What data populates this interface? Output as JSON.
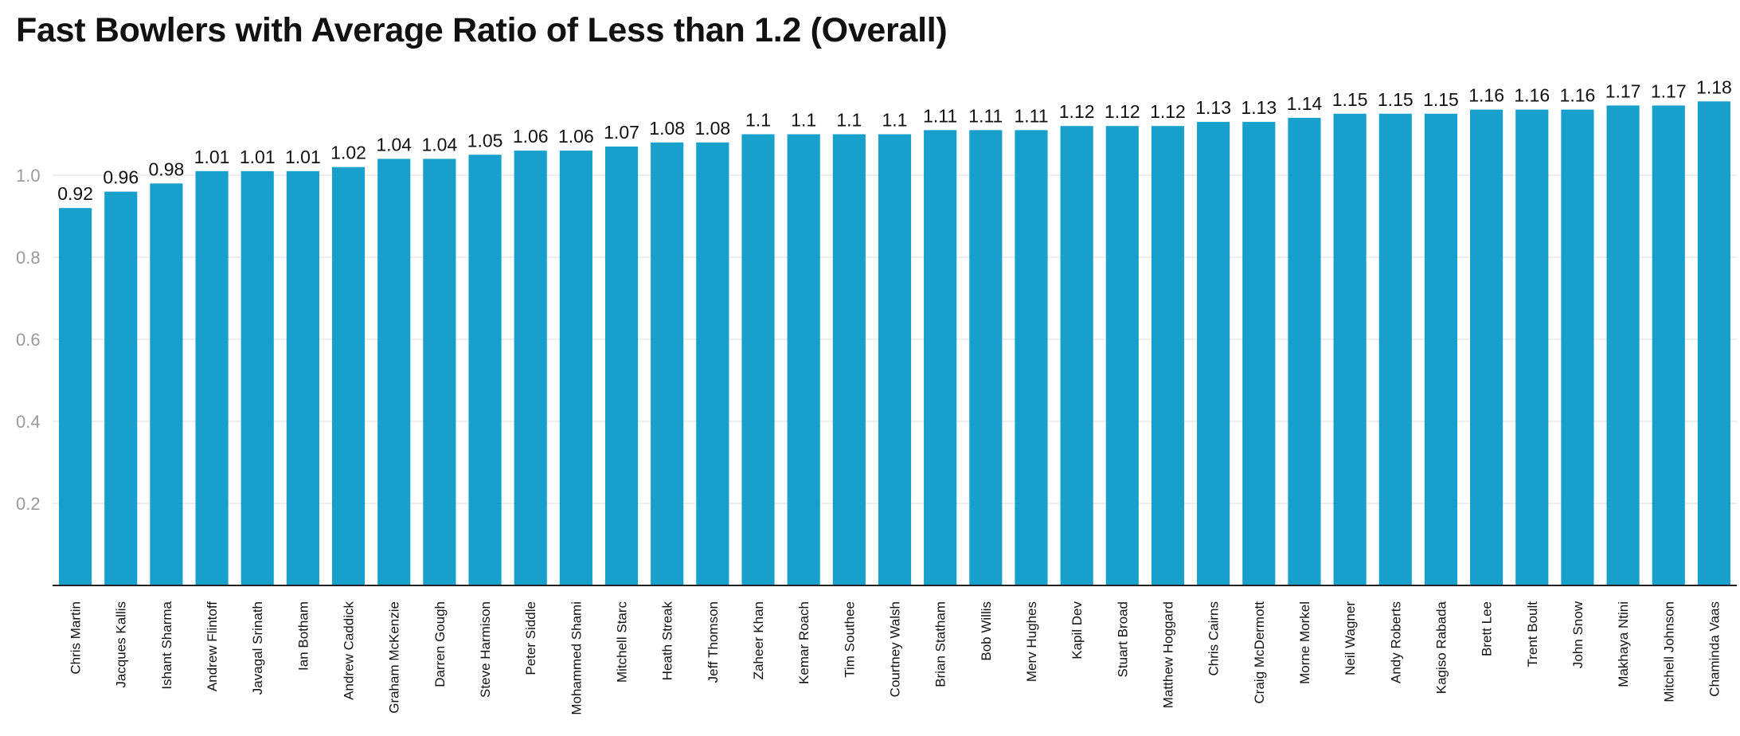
{
  "chart_data": {
    "type": "bar",
    "title": "Fast Bowlers with Average Ratio of Less than 1.2 (Overall)",
    "xlabel": "",
    "ylabel": "",
    "ylim": [
      0,
      1.2
    ],
    "yticks": [
      0.2,
      0.4,
      0.6,
      0.8,
      1.0
    ],
    "ytick_labels": [
      "0.2",
      "0.4",
      "0.6",
      "0.8",
      "1.0"
    ],
    "grid": true,
    "bar_color": "#18a0cc",
    "categories": [
      "Chris Martin",
      "Jacques Kallis",
      "Ishant Sharma",
      "Andrew Flintoff",
      "Javagal Srinath",
      "Ian Botham",
      "Andrew Caddick",
      "Graham McKenzie",
      "Darren Gough",
      "Steve Harmison",
      "Peter Siddle",
      "Mohammed Shami",
      "Mitchell Starc",
      "Heath Streak",
      "Jeff Thomson",
      "Zaheer Khan",
      "Kemar Roach",
      "Tim Southee",
      "Courtney Walsh",
      "Brian Statham",
      "Bob Willis",
      "Merv Hughes",
      "Kapil Dev",
      "Stuart Broad",
      "Matthew Hoggard",
      "Chris Cairns",
      "Craig McDermott",
      "Morne Morkel",
      "Neil Wagner",
      "Andy Roberts",
      "Kagiso Rabada",
      "Brett Lee",
      "Trent Boult",
      "John Snow",
      "Makhaya Ntini",
      "Mitchell Johnson",
      "Chaminda Vaas"
    ],
    "values": [
      0.92,
      0.96,
      0.98,
      1.01,
      1.01,
      1.01,
      1.02,
      1.04,
      1.04,
      1.05,
      1.06,
      1.06,
      1.07,
      1.08,
      1.08,
      1.1,
      1.1,
      1.1,
      1.1,
      1.11,
      1.11,
      1.11,
      1.12,
      1.12,
      1.12,
      1.13,
      1.13,
      1.14,
      1.15,
      1.15,
      1.15,
      1.16,
      1.16,
      1.16,
      1.17,
      1.17,
      1.18
    ],
    "value_labels": [
      "0.92",
      "0.96",
      "0.98",
      "1.01",
      "1.01",
      "1.01",
      "1.02",
      "1.04",
      "1.04",
      "1.05",
      "1.06",
      "1.06",
      "1.07",
      "1.08",
      "1.08",
      "1.1",
      "1.1",
      "1.1",
      "1.1",
      "1.11",
      "1.11",
      "1.11",
      "1.12",
      "1.12",
      "1.12",
      "1.13",
      "1.13",
      "1.14",
      "1.15",
      "1.15",
      "1.15",
      "1.16",
      "1.16",
      "1.16",
      "1.17",
      "1.17",
      "1.18"
    ]
  }
}
